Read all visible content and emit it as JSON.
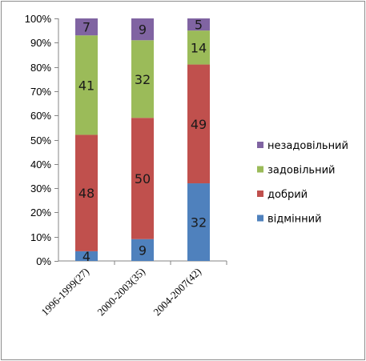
{
  "chart_data": {
    "type": "bar",
    "stacked": true,
    "percent": true,
    "categories": [
      "1996-1999(27)",
      "2000-2003(35)",
      "2004-2007(42)"
    ],
    "series": [
      {
        "name": "відмінний",
        "color": "#4f81bd",
        "values": [
          4,
          9,
          32
        ]
      },
      {
        "name": "добрий",
        "color": "#c0504d",
        "values": [
          48,
          50,
          49
        ]
      },
      {
        "name": "задовільний",
        "color": "#9bbb59",
        "values": [
          41,
          32,
          14
        ]
      },
      {
        "name": "незадовільний",
        "color": "#8064a2",
        "values": [
          7,
          9,
          5
        ]
      }
    ],
    "y_ticks": [
      "0%",
      "10%",
      "20%",
      "30%",
      "40%",
      "50%",
      "60%",
      "70%",
      "80%",
      "90%",
      "100%"
    ],
    "ylim": [
      0,
      100
    ],
    "grid": false,
    "legend": "right",
    "data_labels": true
  }
}
